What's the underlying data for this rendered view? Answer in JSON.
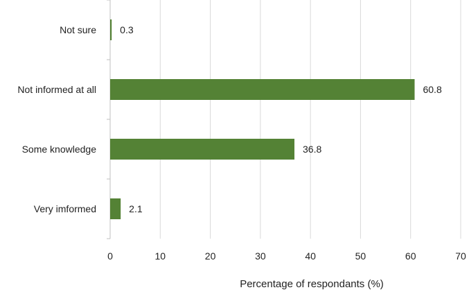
{
  "chart_data": {
    "type": "bar",
    "orientation": "horizontal",
    "categories": [
      "Not sure",
      "Not informed at all",
      "Some knowledge",
      "Very imformed"
    ],
    "values": [
      0.3,
      60.8,
      36.8,
      2.1
    ],
    "data_labels": [
      "0.3",
      "60.8",
      "36.8",
      "2.1"
    ],
    "xlabel": "Percentage of respondants (%)",
    "ylabel": "",
    "title": "",
    "xlim": [
      0,
      70
    ],
    "x_ticks": [
      0,
      10,
      20,
      30,
      40,
      50,
      60,
      70
    ],
    "x_tick_labels": [
      "0",
      "10",
      "20",
      "30",
      "40",
      "50",
      "60",
      "70"
    ],
    "grid": "vertical",
    "legend": "none",
    "bar_color": "#548235"
  }
}
